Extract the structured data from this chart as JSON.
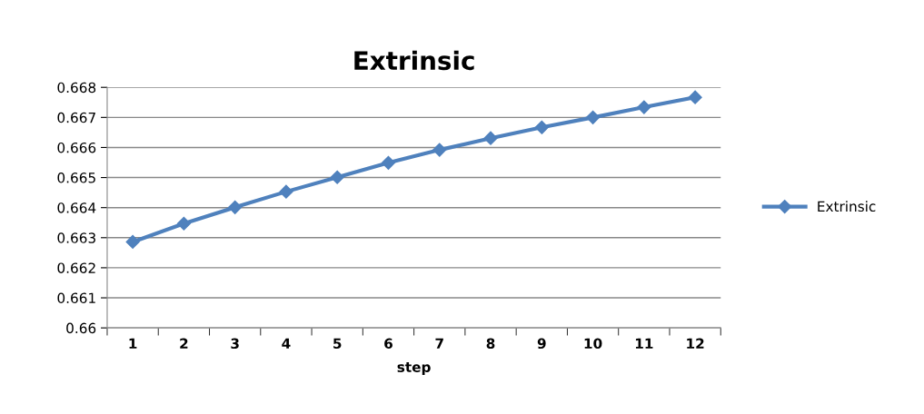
{
  "chart_data": {
    "type": "line",
    "title": "Extrinsic",
    "xlabel": "step",
    "categories": [
      "1",
      "2",
      "3",
      "4",
      "5",
      "6",
      "7",
      "8",
      "9",
      "10",
      "11",
      "12"
    ],
    "series": [
      {
        "name": "Extrinsic",
        "color": "#4f81bd",
        "values": [
          0.66286,
          0.66347,
          0.66401,
          0.66453,
          0.66501,
          0.66549,
          0.66592,
          0.66631,
          0.66667,
          0.667,
          0.66734,
          0.66767
        ]
      }
    ],
    "ylim": [
      0.66,
      0.668
    ],
    "yticks": [
      {
        "value": 0.66,
        "label": "0.66"
      },
      0.661,
      0.662,
      0.663,
      0.664,
      0.665,
      0.666,
      0.667,
      0.668
    ],
    "grid": "y",
    "legend": "right",
    "marker": "diamond",
    "line_style": "solid"
  }
}
